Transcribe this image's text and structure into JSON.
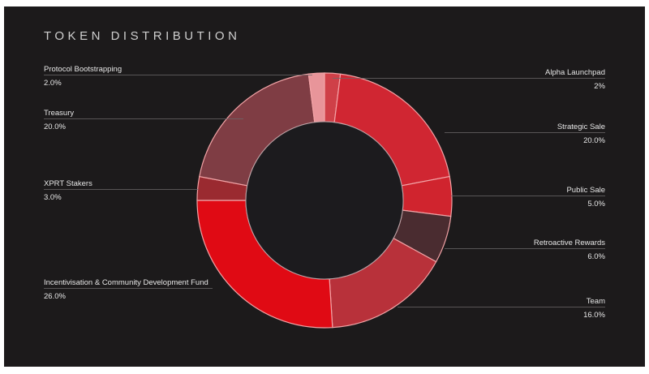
{
  "chart_data": {
    "type": "pie",
    "variant": "donut",
    "title": "TOKEN DISTRIBUTION",
    "slices": [
      {
        "label": "Alpha Launchpad",
        "value": 2,
        "display": "2%",
        "color": "#cf4048",
        "side": "right"
      },
      {
        "label": "Strategic Sale",
        "value": 20,
        "display": "20.0%",
        "color": "#d02632",
        "side": "right"
      },
      {
        "label": "Public Sale",
        "value": 5,
        "display": "5.0%",
        "color": "#d0242e",
        "side": "right"
      },
      {
        "label": "Retroactive Rewards",
        "value": 6,
        "display": "6.0%",
        "color": "#4a2c30",
        "side": "right"
      },
      {
        "label": "Team",
        "value": 16,
        "display": "16.0%",
        "color": "#b8313a",
        "side": "right"
      },
      {
        "label": "Incentivisation & Community Development Fund",
        "value": 26,
        "display": "26.0%",
        "color": "#e00a14",
        "side": "left"
      },
      {
        "label": "XPRT Stakers",
        "value": 3,
        "display": "3.0%",
        "color": "#9a2a30",
        "side": "left"
      },
      {
        "label": "Treasury",
        "value": 20,
        "display": "20.0%",
        "color": "#7f3d44",
        "side": "left"
      },
      {
        "label": "Protocol Bootstrapping",
        "value": 2,
        "display": "2.0%",
        "color": "#e8959a",
        "side": "left"
      }
    ],
    "start": "top",
    "direction": "clockwise",
    "legend": "callout labels left and right"
  },
  "colors": {
    "background": "#1c1a1b",
    "separator": "#f2a3a6",
    "text": "#e6e6e6"
  }
}
